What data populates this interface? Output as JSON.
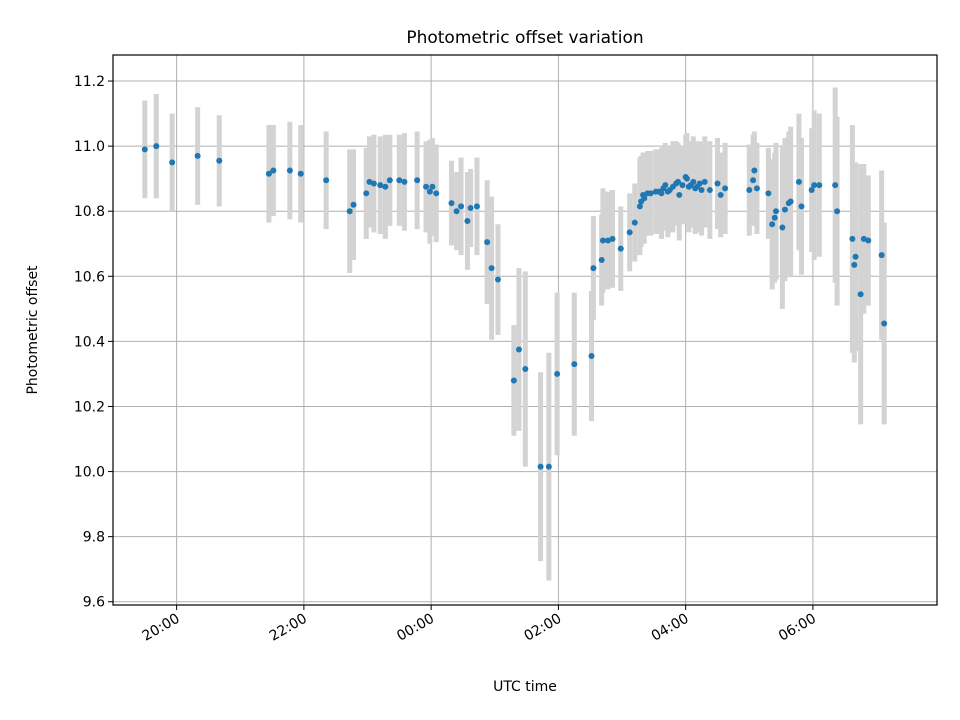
{
  "chart_data": {
    "type": "scatter",
    "title": "Photometric offset variation",
    "xlabel": "UTC time",
    "ylabel": "Photometric offset",
    "x_tick_labels": [
      "20:00",
      "22:00",
      "00:00",
      "02:00",
      "04:00",
      "06:00"
    ],
    "x_tick_hours": [
      20,
      22,
      24,
      26,
      28,
      30
    ],
    "xlim_hours": [
      19.0,
      31.95
    ],
    "ylim": [
      9.59,
      11.28
    ],
    "y_ticks": [
      9.6,
      9.8,
      10.0,
      10.2,
      10.4,
      10.6,
      10.8,
      11.0,
      11.2
    ],
    "y_tick_labels": [
      "9.6",
      "9.8",
      "10.0",
      "10.2",
      "10.4",
      "10.6",
      "10.8",
      "11.0",
      "11.2"
    ],
    "grid": true,
    "colors": {
      "points": "#1f77b4",
      "errorbars": "#d3d3d3",
      "grid": "#b0b0b0"
    },
    "series": [
      {
        "x_hours": [
          19.5,
          19.68,
          19.93,
          20.33,
          20.67,
          21.45,
          21.52,
          21.78,
          21.95,
          22.35,
          22.72,
          22.78,
          22.98,
          23.03,
          23.1,
          23.2,
          23.28,
          23.35,
          23.5,
          23.58,
          23.78,
          23.92,
          23.98,
          24.02,
          24.08,
          24.32,
          24.4,
          24.47,
          24.57,
          24.62,
          24.72,
          24.88,
          24.95,
          25.05,
          25.3,
          25.38,
          25.48,
          25.72,
          25.85,
          25.98,
          26.25,
          26.52,
          26.55,
          26.68,
          26.7,
          26.78,
          26.85,
          26.98,
          27.12,
          27.2,
          27.28,
          27.3,
          27.33,
          27.35,
          27.4,
          27.45,
          27.53,
          27.58,
          27.62,
          27.65,
          27.68,
          27.72,
          27.75,
          27.8,
          27.85,
          27.88,
          27.9,
          27.95,
          28.0,
          28.02,
          28.05,
          28.08,
          28.12,
          28.15,
          28.18,
          28.22,
          28.25,
          28.3,
          28.38,
          28.5,
          28.55,
          28.62,
          29.0,
          29.06,
          29.08,
          29.12,
          29.3,
          29.36,
          29.4,
          29.42,
          29.52,
          29.56,
          29.62,
          29.65,
          29.78,
          29.82,
          29.98,
          30.02,
          30.1,
          30.35,
          30.38,
          30.62,
          30.65,
          30.67,
          30.75,
          30.8,
          30.87,
          31.08,
          31.12
        ],
        "y": [
          10.99,
          11.0,
          10.95,
          10.97,
          10.955,
          10.915,
          10.925,
          10.925,
          10.915,
          10.895,
          10.8,
          10.82,
          10.855,
          10.89,
          10.885,
          10.88,
          10.875,
          10.895,
          10.895,
          10.89,
          10.895,
          10.875,
          10.86,
          10.875,
          10.855,
          10.825,
          10.8,
          10.815,
          10.77,
          10.81,
          10.815,
          10.705,
          10.625,
          10.59,
          10.28,
          10.375,
          10.315,
          10.015,
          10.015,
          10.3,
          10.33,
          10.355,
          10.625,
          10.65,
          10.71,
          10.71,
          10.715,
          10.685,
          10.735,
          10.765,
          10.815,
          10.83,
          10.85,
          10.84,
          10.855,
          10.855,
          10.86,
          10.86,
          10.855,
          10.87,
          10.88,
          10.86,
          10.865,
          10.875,
          10.885,
          10.89,
          10.85,
          10.88,
          10.905,
          10.9,
          10.875,
          10.88,
          10.89,
          10.87,
          10.875,
          10.885,
          10.865,
          10.89,
          10.865,
          10.885,
          10.85,
          10.87,
          10.865,
          10.895,
          10.925,
          10.87,
          10.855,
          10.76,
          10.78,
          10.8,
          10.75,
          10.805,
          10.825,
          10.83,
          10.89,
          10.815,
          10.865,
          10.88,
          10.88,
          10.88,
          10.8,
          10.715,
          10.635,
          10.66,
          10.545,
          10.715,
          10.71,
          10.665,
          10.455
        ],
        "err": [
          0.15,
          0.16,
          0.15,
          0.15,
          0.14,
          0.15,
          0.14,
          0.15,
          0.15,
          0.15,
          0.19,
          0.17,
          0.14,
          0.14,
          0.15,
          0.15,
          0.16,
          0.14,
          0.14,
          0.15,
          0.15,
          0.14,
          0.16,
          0.15,
          0.15,
          0.13,
          0.12,
          0.15,
          0.15,
          0.12,
          0.15,
          0.19,
          0.22,
          0.17,
          0.17,
          0.25,
          0.3,
          0.29,
          0.35,
          0.25,
          0.22,
          0.2,
          0.16,
          0.14,
          0.16,
          0.15,
          0.15,
          0.13,
          0.12,
          0.12,
          0.15,
          0.14,
          0.13,
          0.14,
          0.13,
          0.13,
          0.13,
          0.13,
          0.14,
          0.13,
          0.13,
          0.14,
          0.13,
          0.14,
          0.13,
          0.12,
          0.14,
          0.12,
          0.13,
          0.14,
          0.14,
          0.13,
          0.14,
          0.14,
          0.14,
          0.13,
          0.14,
          0.14,
          0.15,
          0.14,
          0.13,
          0.14,
          0.14,
          0.14,
          0.12,
          0.14,
          0.14,
          0.2,
          0.2,
          0.21,
          0.25,
          0.22,
          0.22,
          0.23,
          0.21,
          0.21,
          0.19,
          0.23,
          0.22,
          0.3,
          0.29,
          0.35,
          0.3,
          0.29,
          0.4,
          0.23,
          0.2,
          0.26,
          0.31
        ]
      }
    ]
  }
}
